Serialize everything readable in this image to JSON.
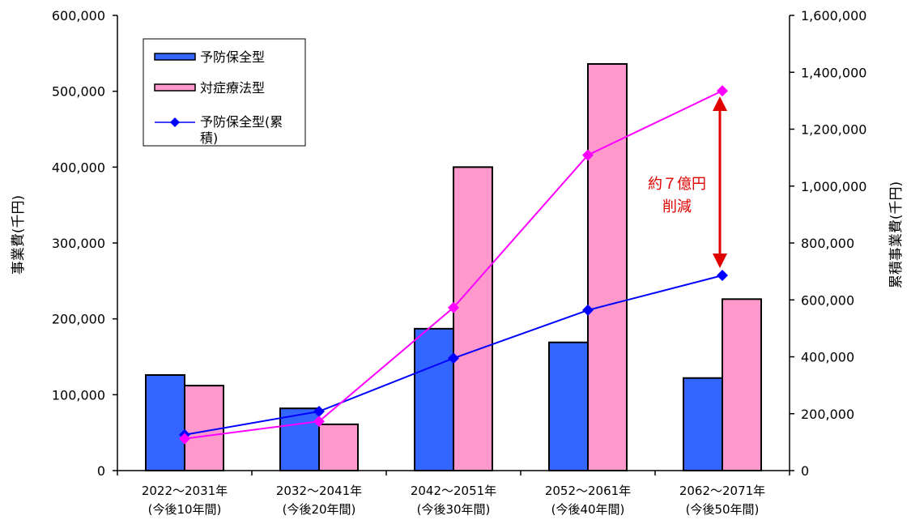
{
  "chart_data": {
    "type": "bar",
    "categories": [
      [
        "2022～2031年",
        "(今後10年間)"
      ],
      [
        "2032～2041年",
        "(今後20年間)"
      ],
      [
        "2042～2051年",
        "(今後30年間)"
      ],
      [
        "2052～2061年",
        "(今後40年間)"
      ],
      [
        "2062～2071年",
        "(今後50年間)"
      ]
    ],
    "series": [
      {
        "name": "予防保全型",
        "kind": "bar",
        "axis": "left",
        "color": "#3366ff",
        "values": [
          126000,
          82000,
          187000,
          169000,
          122000
        ]
      },
      {
        "name": "対症療法型",
        "kind": "bar",
        "axis": "left",
        "color": "#ff99cc",
        "values": [
          112000,
          61000,
          400000,
          536000,
          226000
        ]
      },
      {
        "name": "予防保全型(累積)",
        "kind": "line",
        "axis": "right",
        "color": "#0000ff",
        "values": [
          126000,
          208000,
          395000,
          564000,
          686000
        ]
      },
      {
        "name": "",
        "kind": "line",
        "axis": "right",
        "color": "#ff00ff",
        "values": [
          112000,
          173000,
          573000,
          1109000,
          1335000
        ]
      }
    ],
    "ylabel_left": "事業費(千円)",
    "ylabel_right": "累積事業費(千円)",
    "ylim_left": [
      0,
      600000
    ],
    "ylim_right": [
      0,
      1600000
    ],
    "yticks_left": [
      "0",
      "100,000",
      "200,000",
      "300,000",
      "400,000",
      "500,000",
      "600,000"
    ],
    "yticks_right": [
      "0",
      "200,000",
      "400,000",
      "600,000",
      "800,000",
      "1,000,000",
      "1,200,000",
      "1,400,000",
      "1,600,000"
    ],
    "legend": [
      "予防保全型",
      "対症療法型",
      "予防保全型(累",
      "積)"
    ],
    "annotation": [
      "約７億円",
      "削減"
    ],
    "grid": false,
    "legend_position": "top-left"
  }
}
